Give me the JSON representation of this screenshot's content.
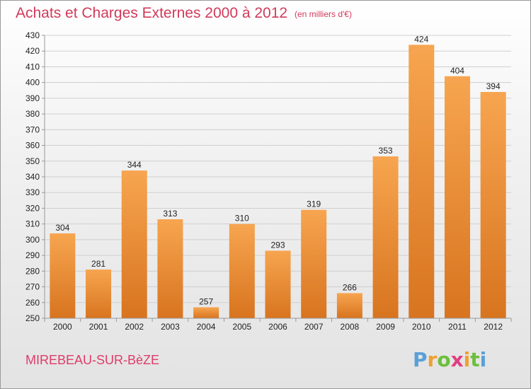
{
  "chart_data": {
    "type": "bar",
    "title": "Achats et Charges Externes 2000 à 2012",
    "subtitle": "(en milliers d'€)",
    "categories": [
      "2000",
      "2001",
      "2002",
      "2003",
      "2004",
      "2005",
      "2006",
      "2007",
      "2008",
      "2009",
      "2010",
      "2011",
      "2012"
    ],
    "values": [
      304,
      281,
      344,
      313,
      257,
      310,
      293,
      319,
      266,
      353,
      424,
      404,
      394
    ],
    "ylim": [
      250,
      430
    ],
    "ytick_step": 10,
    "grid": true,
    "colors": {
      "bar_light": "#f7a550",
      "bar_dark": "#d8741f",
      "title": "#d23a5a"
    }
  },
  "footer": {
    "commune": "MIREBEAU-SUR-BèZE",
    "brand_letters": [
      "P",
      "r",
      "o",
      "x",
      "i",
      "t",
      "i"
    ],
    "brand_colors": [
      "#5aa0d8",
      "#f0a030",
      "#6cbf3c",
      "#e04080",
      "#f0a030",
      "#6cbf3c",
      "#5aa0d8"
    ]
  }
}
